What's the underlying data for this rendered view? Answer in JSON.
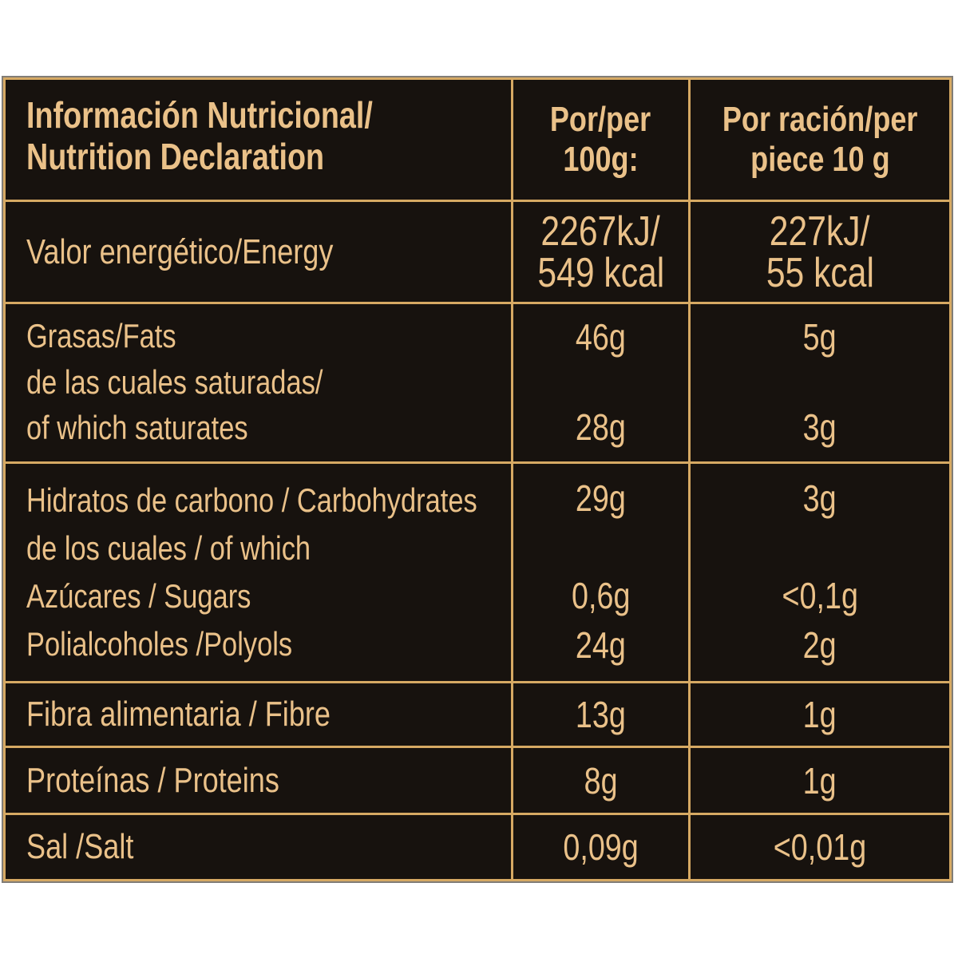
{
  "colors": {
    "gold_text": "#eac189",
    "gold_line": "#d6a963",
    "table_background": "#17120e",
    "page_background": "#ffffff"
  },
  "header": {
    "title_lines": [
      "Información Nutricional/",
      "Nutrition Declaration"
    ],
    "per_100_lines": [
      "Por/per",
      "100g:"
    ],
    "per_piece_lines": [
      "Por ración/per",
      "piece 10 g"
    ]
  },
  "rows": {
    "energy": {
      "label": "Valor energético/Energy",
      "per_100_lines": [
        "2267kJ/",
        "549 kcal"
      ],
      "per_piece_lines": [
        "227kJ/",
        "55 kcal"
      ]
    },
    "fats": {
      "label": "Grasas/Fats",
      "saturates_label_lines": [
        "de las cuales saturadas/",
        "of which saturates"
      ],
      "per_100_total": "46g",
      "per_100_saturates": "28g",
      "per_piece_total": "5g",
      "per_piece_saturates": "3g"
    },
    "carbohydrates": {
      "label_lines": [
        "Hidratos de carbono / Carbohydrates",
        "de los cuales / of which",
        "Azúcares / Sugars",
        "Polialcoholes /Polyols"
      ],
      "per_100_total": "29g",
      "per_100_sugars": "0,6g",
      "per_100_polyols": "24g",
      "per_piece_total": "3g",
      "per_piece_sugars": "<0,1g",
      "per_piece_polyols": "2g"
    },
    "fibre": {
      "label": "Fibra alimentaria / Fibre",
      "per_100": "13g",
      "per_piece": "1g"
    },
    "proteins": {
      "label": "Proteínas / Proteins",
      "per_100": "8g",
      "per_piece": "1g"
    },
    "salt": {
      "label": "Sal /Salt",
      "per_100": "0,09g",
      "per_piece": "<0,01g"
    }
  }
}
